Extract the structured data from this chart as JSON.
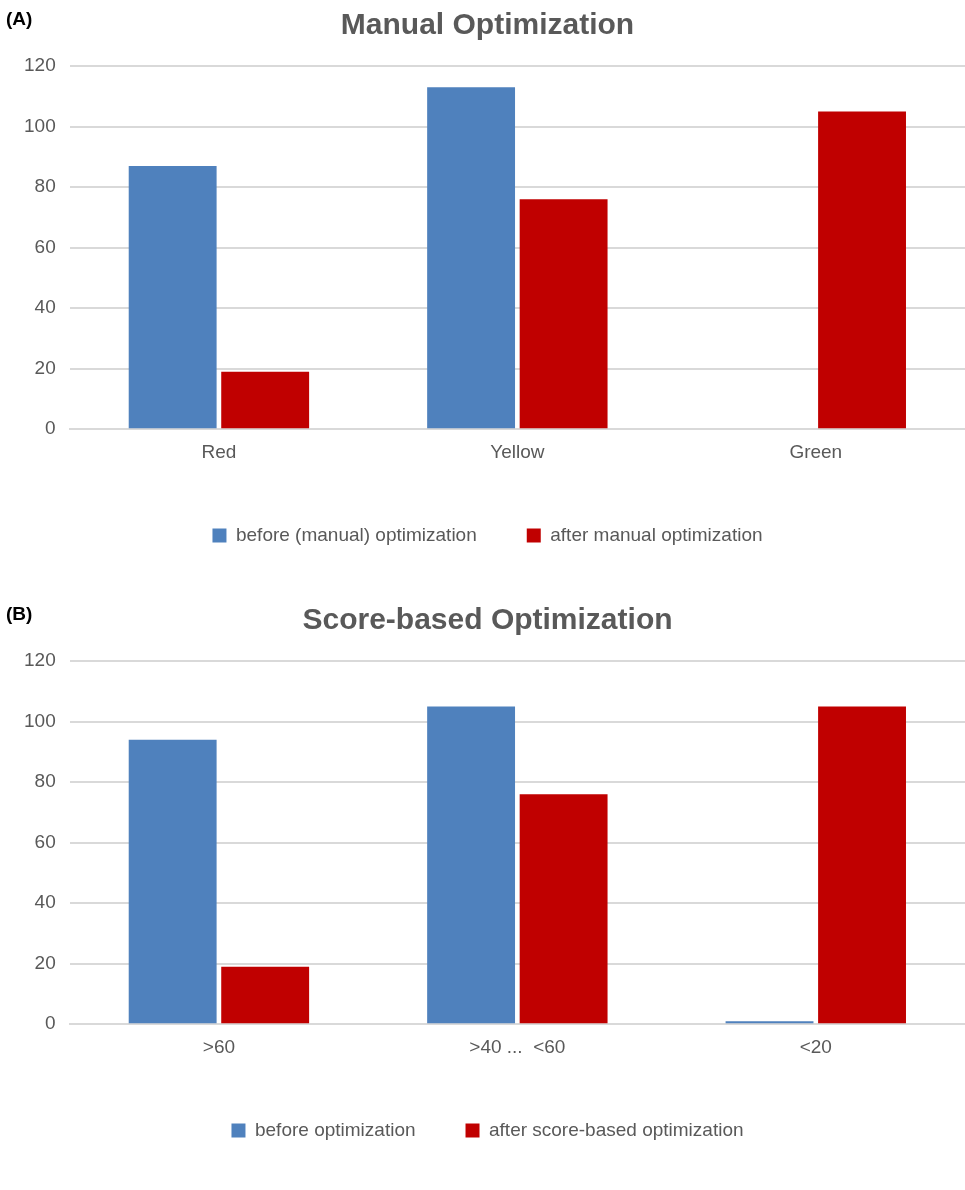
{
  "chart_data": [
    {
      "type": "bar",
      "title": "Manual Optimization",
      "annotations": [
        "(A)"
      ],
      "categories": [
        "Red",
        "Yellow",
        "Green"
      ],
      "series": [
        {
          "name": "before (manual) optimization",
          "color": "#4f81bd",
          "values": [
            87,
            113,
            0
          ]
        },
        {
          "name": "after manual optimization",
          "color": "#c00000",
          "values": [
            19,
            76,
            105
          ]
        }
      ],
      "ylim": [
        0,
        120
      ],
      "yticks": [
        0,
        20,
        40,
        60,
        80,
        100,
        120
      ],
      "grid": "y",
      "legend": "bottom"
    },
    {
      "type": "bar",
      "title": "Score-based Optimization",
      "annotations": [
        "(B)"
      ],
      "categories": [
        ">60",
        ">40 ...  <60",
        "<20"
      ],
      "series": [
        {
          "name": "before optimization",
          "color": "#4f81bd",
          "values": [
            94,
            105,
            1
          ]
        },
        {
          "name": "after score-based optimization",
          "color": "#c00000",
          "values": [
            19,
            76,
            105
          ]
        }
      ],
      "ylim": [
        0,
        120
      ],
      "yticks": [
        0,
        20,
        40,
        60,
        80,
        100,
        120
      ],
      "grid": "y",
      "legend": "bottom"
    }
  ]
}
